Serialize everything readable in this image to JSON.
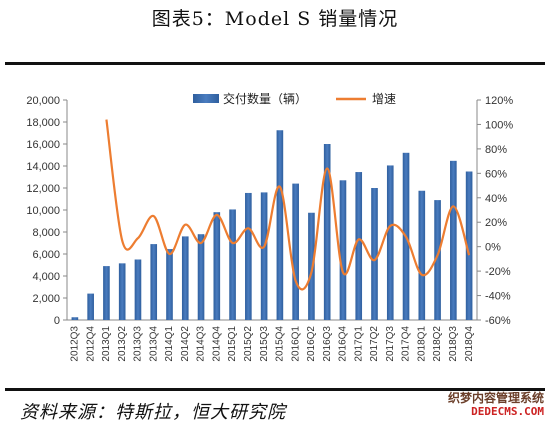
{
  "title": "图表5：Model S 销量情况",
  "source": "资料来源：特斯拉，恒大研究院",
  "watermark": {
    "line1": "织梦内容管理系统",
    "line2": "DEDECMS.COM"
  },
  "colors": {
    "bar": "#4a7cbf",
    "line": "#ed7d31",
    "rule": "#111111"
  },
  "chart_data": {
    "type": "bar+line",
    "categories": [
      "2012Q3",
      "2012Q4",
      "2013Q1",
      "2013Q2",
      "2013Q3",
      "2013Q4",
      "2014Q1",
      "2014Q2",
      "2014Q3",
      "2014Q4",
      "2015Q1",
      "2015Q2",
      "2015Q3",
      "2015Q4",
      "2016Q1",
      "2016Q2",
      "2016Q3",
      "2016Q4",
      "2017Q1",
      "2017Q2",
      "2017Q3",
      "2017Q4",
      "2018Q1",
      "2018Q2",
      "2018Q3",
      "2018Q4"
    ],
    "series": [
      {
        "name": "交付数量（辆）",
        "type": "bar",
        "axis": "left",
        "values": [
          250,
          2400,
          4900,
          5150,
          5500,
          6900,
          6450,
          7600,
          7800,
          9800,
          10050,
          11550,
          11600,
          17250,
          12400,
          9750,
          16000,
          12700,
          13450,
          12000,
          14050,
          15200,
          11750,
          10900,
          14470,
          13500
        ]
      },
      {
        "name": "增速",
        "type": "line",
        "axis": "right",
        "values": [
          null,
          null,
          104,
          5,
          7,
          25,
          -6,
          18,
          3,
          26,
          3,
          15,
          0,
          49,
          -28,
          -21,
          64,
          -21,
          6,
          -11,
          17,
          8,
          -23,
          -7,
          33,
          -7
        ]
      }
    ],
    "left_axis": {
      "min": 0,
      "max": 20000,
      "ticks": [
        "0",
        "2,000",
        "4,000",
        "6,000",
        "8,000",
        "10,000",
        "12,000",
        "14,000",
        "16,000",
        "18,000",
        "20,000"
      ]
    },
    "right_axis": {
      "min": -60,
      "max": 120,
      "ticks": [
        "-60%",
        "-40%",
        "-20%",
        "0%",
        "20%",
        "40%",
        "60%",
        "80%",
        "100%",
        "120%"
      ]
    },
    "legend_position": "top",
    "grid": false
  }
}
